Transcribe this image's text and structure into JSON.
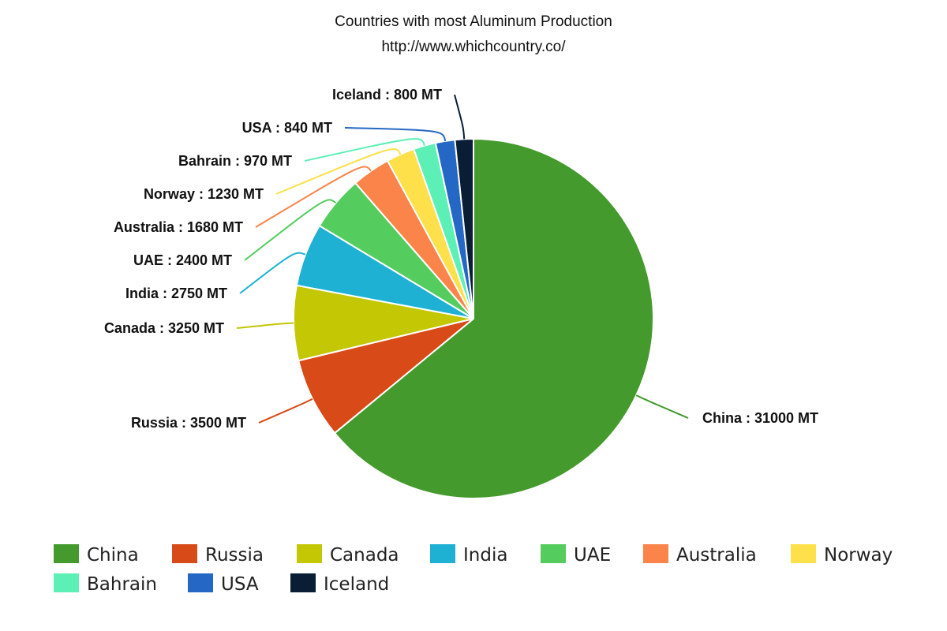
{
  "chart_data": {
    "type": "pie",
    "title": "Countries with most Aluminum Production",
    "subtitle": "http://www.whichcountry.co/",
    "unit": "MT",
    "slices": [
      {
        "name": "China",
        "value": 31000,
        "label": "China : 31000 MT",
        "color": "#459a2e"
      },
      {
        "name": "Russia",
        "value": 3500,
        "label": "Russia : 3500 MT",
        "color": "#d84a17"
      },
      {
        "name": "Canada",
        "value": 3250,
        "label": "Canada : 3250 MT",
        "color": "#c3c704"
      },
      {
        "name": "India",
        "value": 2750,
        "label": "India : 2750 MT",
        "color": "#1fb1d3"
      },
      {
        "name": "UAE",
        "value": 2400,
        "label": "UAE : 2400 MT",
        "color": "#54cd5e"
      },
      {
        "name": "Australia",
        "value": 1680,
        "label": "Australia : 1680 MT",
        "color": "#fa844a"
      },
      {
        "name": "Norway",
        "value": 1230,
        "label": "Norway : 1230 MT",
        "color": "#fde04a"
      },
      {
        "name": "Bahrain",
        "value": 970,
        "label": "Bahrain : 970 MT",
        "color": "#5df0b6"
      },
      {
        "name": "USA",
        "value": 840,
        "label": "USA : 840 MT",
        "color": "#2467c4"
      },
      {
        "name": "Iceland",
        "value": 800,
        "label": "Iceland : 800 MT",
        "color": "#091e35"
      }
    ],
    "legend_placement": "bottom"
  }
}
